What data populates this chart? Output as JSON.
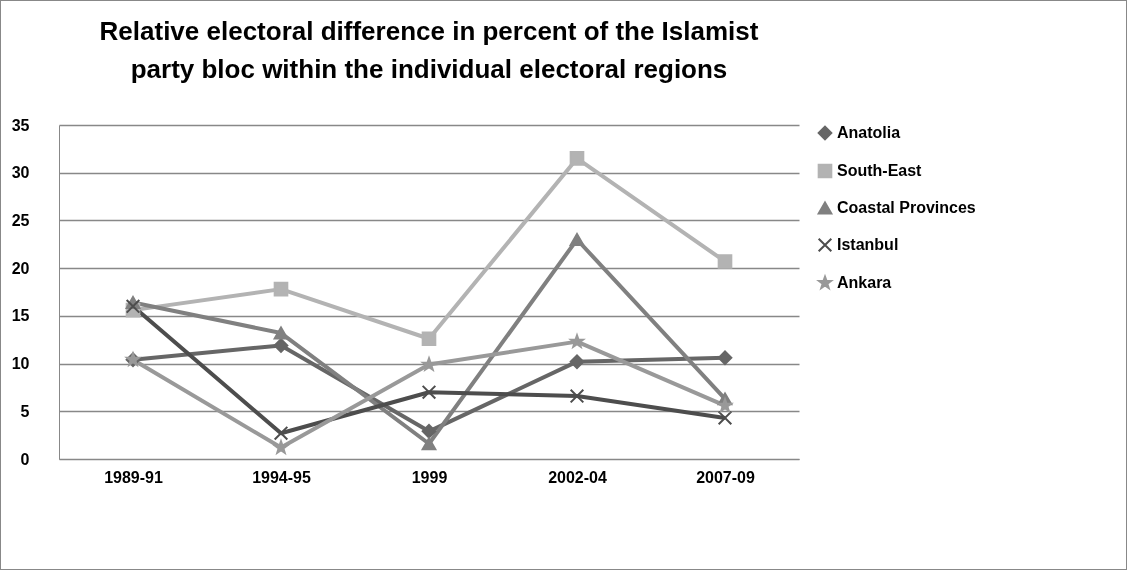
{
  "chart_data": {
    "type": "line",
    "title": [
      "Relative electoral difference  in percent of the Islamist",
      "party bloc within the individual electoral regions"
    ],
    "categories": [
      "1989-91",
      "1994-95",
      "1999",
      "2002-04",
      "2007-09"
    ],
    "series": [
      {
        "name": "Anatolia",
        "color": "#666666",
        "marker": "diamond",
        "values": [
          10.4,
          11.9,
          2.9,
          10.2,
          10.6
        ]
      },
      {
        "name": "South-East",
        "color": "#b3b3b3",
        "marker": "square",
        "values": [
          15.6,
          17.8,
          12.6,
          31.5,
          20.7
        ]
      },
      {
        "name": "Coastal Provinces",
        "color": "#808080",
        "marker": "triangle",
        "values": [
          16.4,
          13.2,
          1.6,
          23.0,
          6.3
        ]
      },
      {
        "name": "Istanbul",
        "color": "#4d4d4d",
        "marker": "cross",
        "values": [
          16.0,
          2.7,
          7.0,
          6.6,
          4.3
        ]
      },
      {
        "name": "Ankara",
        "color": "#999999",
        "marker": "star",
        "values": [
          10.4,
          1.2,
          9.9,
          12.3,
          5.6
        ]
      }
    ],
    "ylim": [
      0,
      35
    ],
    "yticks": [
      0,
      5,
      10,
      15,
      20,
      25,
      30,
      35
    ],
    "grid": "y",
    "legend": "right"
  }
}
